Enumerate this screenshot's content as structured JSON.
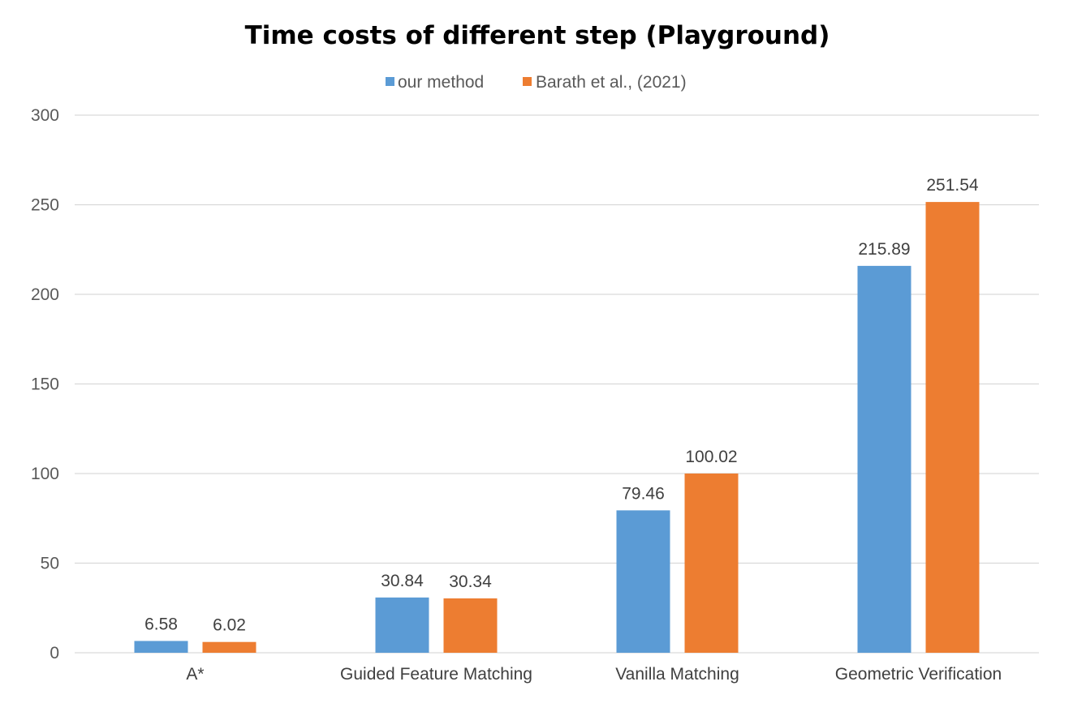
{
  "chart_data": {
    "type": "bar",
    "title": "Time costs of different  step (Playground)",
    "xlabel": "",
    "ylabel": "",
    "categories": [
      "A*",
      "Guided Feature Matching",
      "Vanilla Matching",
      "Geometric Verification"
    ],
    "series": [
      {
        "name": "our method",
        "color": "#5b9bd5",
        "values": [
          6.58,
          30.84,
          79.46,
          215.89
        ]
      },
      {
        "name": "Barath et al., (2021)",
        "color": "#ed7d31",
        "values": [
          6.02,
          30.34,
          100.02,
          251.54
        ]
      }
    ],
    "ylim": [
      0,
      300
    ],
    "yticks": [
      0,
      50,
      100,
      150,
      200,
      250,
      300
    ],
    "grid": true,
    "legend_position": "top",
    "data_labels": true
  }
}
